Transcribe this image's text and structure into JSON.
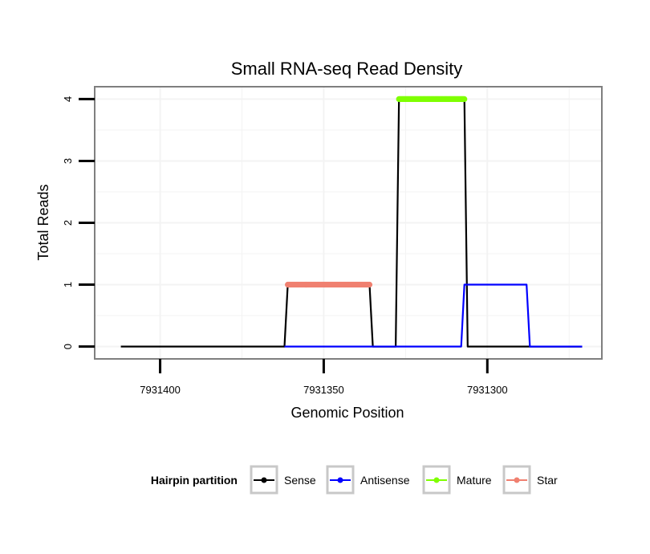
{
  "chart_data": {
    "type": "line",
    "title": "Small RNA-seq Read Density",
    "xlabel": "Genomic Position",
    "ylabel": "Total Reads",
    "x_reversed": true,
    "xlim": [
      7931420,
      7931265
    ],
    "ylim": [
      -0.2,
      4.2
    ],
    "x_ticks": [
      7931400,
      7931350,
      7931300
    ],
    "x_tick_labels": [
      "7931400",
      "7931350",
      "7931300"
    ],
    "y_ticks": [
      0,
      1,
      2,
      3,
      4
    ],
    "y_tick_labels": [
      "0",
      "1",
      "2",
      "3",
      "4"
    ],
    "grid": true,
    "legend": {
      "title": "Hairpin partition",
      "position": "bottom",
      "entries": [
        "Sense",
        "Antisense",
        "Mature",
        "Star"
      ]
    },
    "colors": {
      "Sense": "#000000",
      "Antisense": "#0000ff",
      "Mature": "#7fff00",
      "Star": "#f08070",
      "grid": "#f3f3f3",
      "border": "#7f7f7f",
      "legend_key_border": "#c8c8c8"
    },
    "series": [
      {
        "name": "Sense",
        "style": "line",
        "x": [
          7931412,
          7931362,
          7931361,
          7931336,
          7931335,
          7931328,
          7931327,
          7931307,
          7931306,
          7931271
        ],
        "y": [
          0,
          0,
          1,
          1,
          0,
          0,
          4,
          4,
          0,
          0
        ]
      },
      {
        "name": "Antisense",
        "style": "line",
        "x": [
          7931362,
          7931308,
          7931307,
          7931288,
          7931287,
          7931271
        ],
        "y": [
          0,
          0,
          1,
          1,
          0,
          0
        ]
      },
      {
        "name": "Mature",
        "style": "points",
        "x_range": [
          7931327,
          7931307
        ],
        "y": 4
      },
      {
        "name": "Star",
        "style": "points",
        "x_range": [
          7931361,
          7931336
        ],
        "y": 1
      }
    ]
  }
}
